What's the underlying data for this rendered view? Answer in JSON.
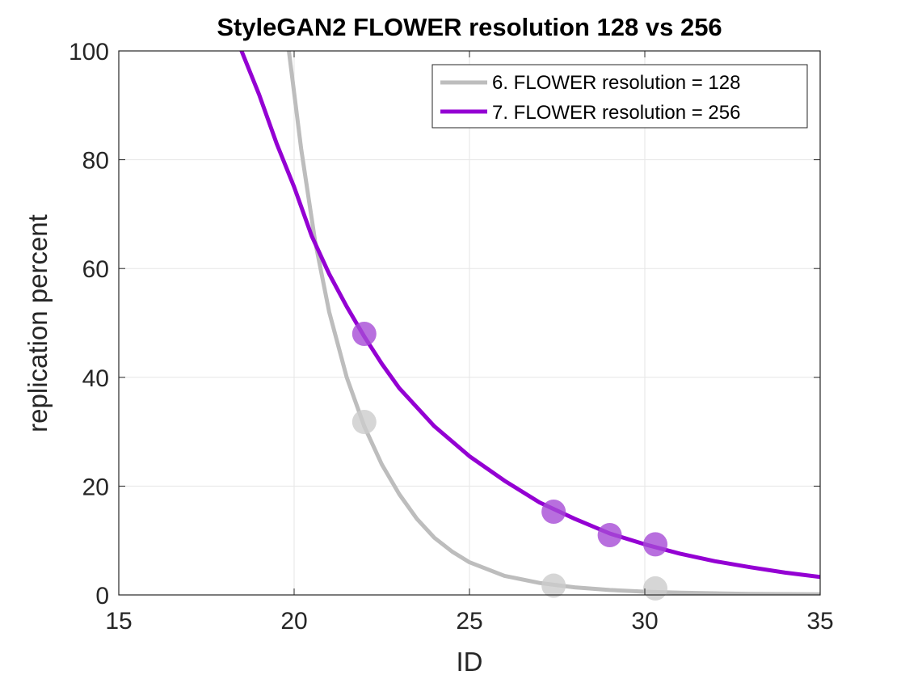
{
  "chart_data": {
    "type": "scatter",
    "title": "StyleGAN2 FLOWER resolution 128 vs 256",
    "xlabel": "ID",
    "ylabel": "replication percent",
    "xlim": [
      15,
      35
    ],
    "ylim": [
      0,
      100
    ],
    "xticks": [
      15,
      20,
      25,
      30,
      35
    ],
    "yticks": [
      0,
      20,
      40,
      60,
      80,
      100
    ],
    "grid": true,
    "legend_position": "top-right",
    "series": [
      {
        "name": "6. FLOWER resolution = 128",
        "color": "#bdbdbd",
        "marker_color": "#cccccc",
        "points": [
          {
            "x": 22.0,
            "y": 31.8
          },
          {
            "x": 27.4,
            "y": 1.7
          },
          {
            "x": 30.3,
            "y": 1.2
          }
        ],
        "fit_curve": [
          {
            "x": 19.85,
            "y": 100
          },
          {
            "x": 20.2,
            "y": 82
          },
          {
            "x": 20.6,
            "y": 65
          },
          {
            "x": 21.0,
            "y": 52
          },
          {
            "x": 21.5,
            "y": 40
          },
          {
            "x": 22.0,
            "y": 31
          },
          {
            "x": 22.5,
            "y": 24
          },
          {
            "x": 23.0,
            "y": 18.5
          },
          {
            "x": 23.5,
            "y": 14
          },
          {
            "x": 24.0,
            "y": 10.5
          },
          {
            "x": 24.5,
            "y": 8
          },
          {
            "x": 25.0,
            "y": 6
          },
          {
            "x": 26.0,
            "y": 3.5
          },
          {
            "x": 27.0,
            "y": 2.2
          },
          {
            "x": 28.0,
            "y": 1.4
          },
          {
            "x": 29.0,
            "y": 0.9
          },
          {
            "x": 30.0,
            "y": 0.6
          },
          {
            "x": 31.0,
            "y": 0.4
          },
          {
            "x": 32.0,
            "y": 0.3
          },
          {
            "x": 33.0,
            "y": 0.2
          },
          {
            "x": 34.0,
            "y": 0.15
          },
          {
            "x": 35.0,
            "y": 0.1
          }
        ]
      },
      {
        "name": "7. FLOWER resolution = 256",
        "color": "#9400d3",
        "marker_color": "#a64bd6",
        "points": [
          {
            "x": 22.0,
            "y": 48.0
          },
          {
            "x": 27.4,
            "y": 15.3
          },
          {
            "x": 29.0,
            "y": 11.0
          },
          {
            "x": 30.3,
            "y": 9.3
          }
        ],
        "fit_curve": [
          {
            "x": 18.5,
            "y": 100
          },
          {
            "x": 19.0,
            "y": 92
          },
          {
            "x": 19.5,
            "y": 83
          },
          {
            "x": 20.0,
            "y": 75
          },
          {
            "x": 20.5,
            "y": 66
          },
          {
            "x": 21.0,
            "y": 59
          },
          {
            "x": 21.5,
            "y": 53
          },
          {
            "x": 22.0,
            "y": 47.5
          },
          {
            "x": 22.5,
            "y": 42.5
          },
          {
            "x": 23.0,
            "y": 38
          },
          {
            "x": 24.0,
            "y": 31
          },
          {
            "x": 25.0,
            "y": 25.5
          },
          {
            "x": 26.0,
            "y": 21
          },
          {
            "x": 27.0,
            "y": 17
          },
          {
            "x": 28.0,
            "y": 14
          },
          {
            "x": 29.0,
            "y": 11.3
          },
          {
            "x": 30.0,
            "y": 9.3
          },
          {
            "x": 31.0,
            "y": 7.6
          },
          {
            "x": 32.0,
            "y": 6.2
          },
          {
            "x": 33.0,
            "y": 5.1
          },
          {
            "x": 34.0,
            "y": 4.1
          },
          {
            "x": 35.0,
            "y": 3.3
          }
        ]
      }
    ]
  }
}
